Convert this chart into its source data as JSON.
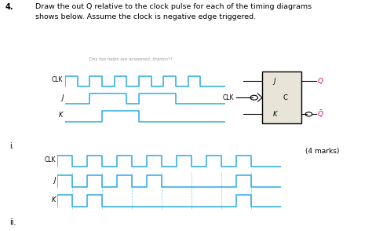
{
  "title_num": "4.",
  "title_text": "Draw the out Q relative to the clock pulse for each of the timing diagrams\nshows below. Assume the clock is negative edge triggered.",
  "watermark": "This top helps are answered, thanks!!!",
  "cyan": "#29ABE2",
  "black": "#000000",
  "dark_gray": "#555555",
  "light_gray": "#E8E4D8",
  "red_pink": "#E0007A",
  "label_i": "i.",
  "label_ii": "ii.",
  "marks": "(4 marks)",
  "clk_label": "CLK",
  "j_label": "J",
  "k_label": "K",
  "clk1_t": [
    0,
    0,
    1,
    1,
    2,
    2,
    3,
    3,
    4,
    4,
    5,
    5,
    6,
    6,
    7,
    7,
    8,
    8,
    9,
    9,
    10,
    10,
    11,
    11,
    12,
    13
  ],
  "clk1_v": [
    0,
    1,
    1,
    0,
    0,
    1,
    1,
    0,
    0,
    1,
    1,
    0,
    0,
    1,
    1,
    0,
    0,
    1,
    1,
    0,
    0,
    1,
    1,
    0,
    0,
    0
  ],
  "j1_t": [
    0,
    2,
    2,
    5,
    5,
    6,
    6,
    9,
    9,
    10,
    13
  ],
  "j1_v": [
    0,
    0,
    1,
    1,
    0,
    0,
    1,
    1,
    0,
    0,
    0
  ],
  "k1_t": [
    0,
    3,
    3,
    6,
    6,
    7,
    13
  ],
  "k1_v": [
    0,
    0,
    1,
    1,
    0,
    0,
    0
  ],
  "clk2_t": [
    0,
    0,
    1,
    1,
    2,
    2,
    3,
    3,
    4,
    4,
    5,
    5,
    6,
    6,
    7,
    7,
    8,
    8,
    9,
    9,
    10,
    10,
    11,
    11,
    12,
    12,
    13,
    13,
    14,
    15
  ],
  "clk2_v": [
    0,
    1,
    1,
    0,
    0,
    1,
    1,
    0,
    0,
    1,
    1,
    0,
    0,
    1,
    1,
    0,
    0,
    1,
    1,
    0,
    0,
    1,
    1,
    0,
    0,
    1,
    1,
    0,
    0,
    0
  ],
  "j2_t": [
    0,
    0,
    1,
    1,
    2,
    2,
    3,
    3,
    4,
    4,
    5,
    5,
    6,
    6,
    7,
    7,
    8,
    9,
    12,
    12,
    13,
    13,
    15
  ],
  "j2_v": [
    0,
    1,
    1,
    0,
    0,
    1,
    1,
    0,
    0,
    1,
    1,
    0,
    0,
    1,
    1,
    0,
    0,
    0,
    0,
    1,
    1,
    0,
    0
  ],
  "k2_t": [
    0,
    0,
    1,
    1,
    2,
    2,
    3,
    3,
    5,
    6,
    9,
    12,
    12,
    13,
    13,
    15
  ],
  "k2_v": [
    0,
    1,
    1,
    0,
    0,
    1,
    1,
    0,
    0,
    0,
    0,
    0,
    1,
    1,
    0,
    0
  ],
  "scale1": 13.0,
  "scale2": 15.0,
  "dashes2": [
    1,
    3,
    5,
    7,
    9,
    11,
    13
  ]
}
